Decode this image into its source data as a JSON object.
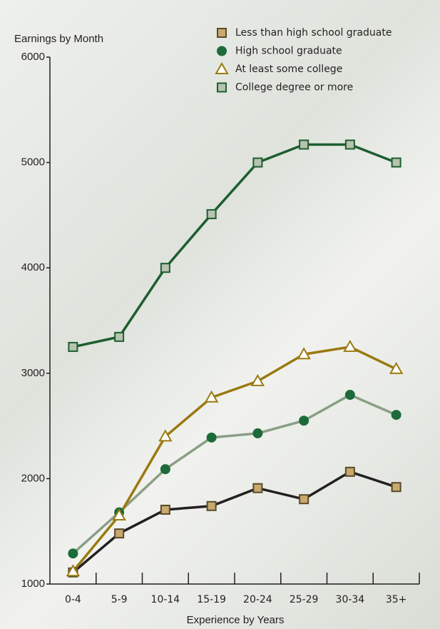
{
  "chart_data": {
    "type": "line",
    "title": "Earnings by Month",
    "x_label": "Experience by Years",
    "categories": [
      "0-4",
      "5-9",
      "10-14",
      "15-19",
      "20-24",
      "25-29",
      "30-34",
      "35+"
    ],
    "ylim": [
      1000,
      6000
    ],
    "yticks": [
      1000,
      2000,
      3000,
      4000,
      5000,
      6000
    ],
    "legend": "top-right",
    "series": [
      {
        "name": "Less than high school graduate",
        "marker": "square",
        "color": "#c8a96e",
        "marker_stroke": "#5a4a2a",
        "line_color": "#231f20",
        "values": [
          1110,
          1480,
          1705,
          1740,
          1910,
          1805,
          2065,
          1920
        ]
      },
      {
        "name": "High school graduate",
        "marker": "circle",
        "color": "#1d6b3a",
        "marker_stroke": "#1d6b3a",
        "line_color": "#8a9e86",
        "values": [
          1290,
          1680,
          2090,
          2390,
          2430,
          2550,
          2795,
          2605
        ]
      },
      {
        "name": "At least some college",
        "marker": "triangle",
        "color": "#ffffff",
        "marker_stroke": "#9a7a10",
        "line_color": "#9a7a10",
        "values": [
          1120,
          1650,
          2400,
          2770,
          2925,
          3180,
          3250,
          3040
        ]
      },
      {
        "name": "College degree or more",
        "marker": "square",
        "color": "#b7c2b0",
        "marker_stroke": "#1d5e30",
        "line_color": "#1d5e30",
        "values": [
          3250,
          3345,
          4000,
          4510,
          5000,
          5170,
          5170,
          5000
        ]
      }
    ]
  }
}
